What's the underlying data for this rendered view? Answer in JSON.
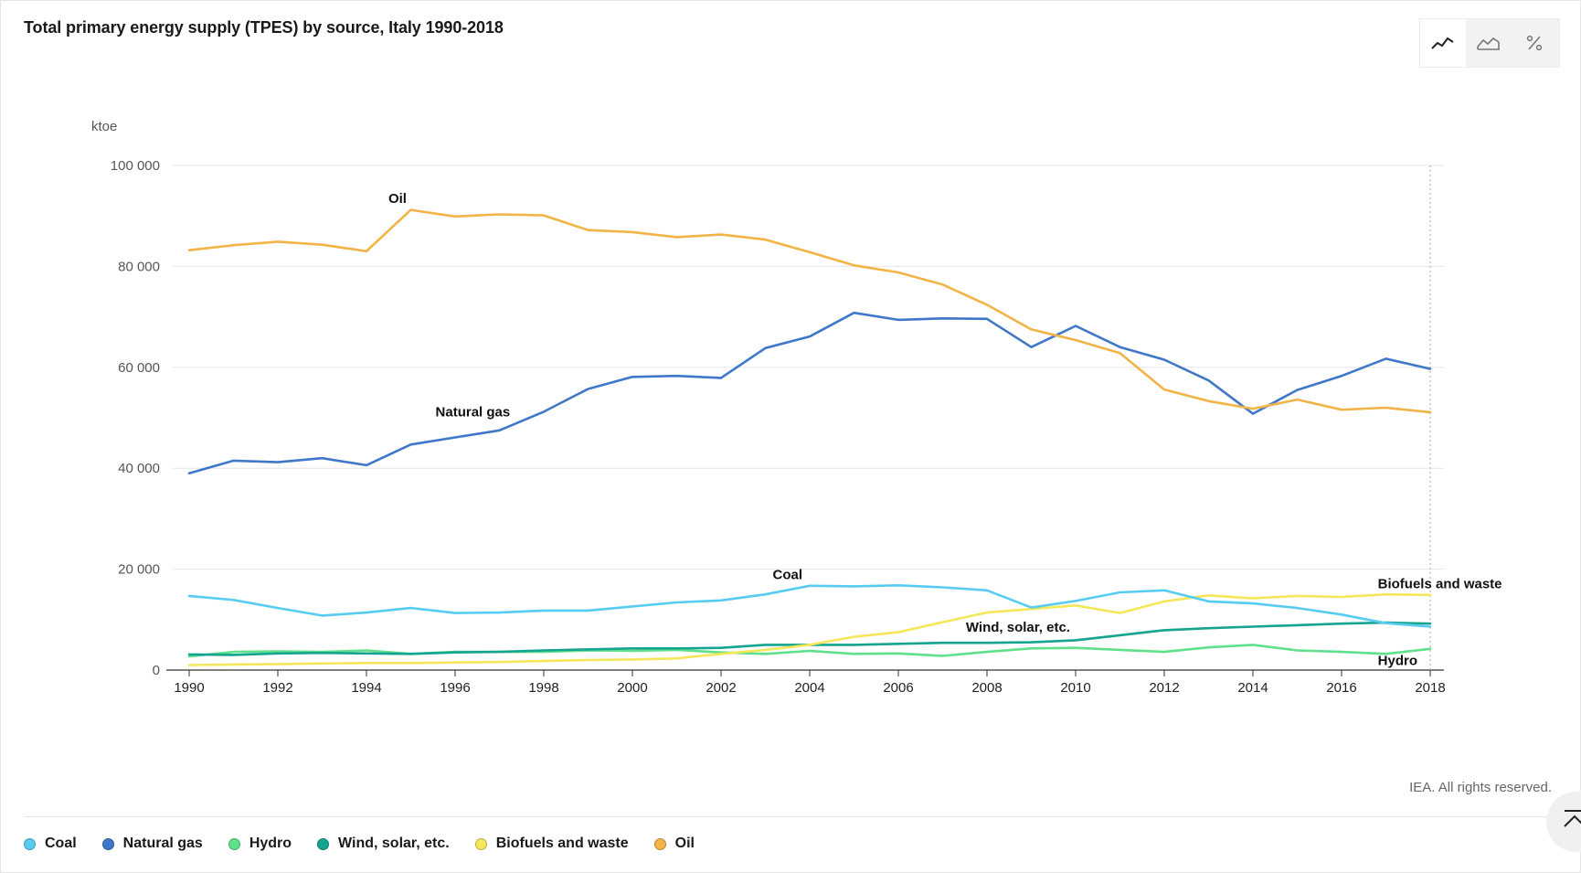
{
  "title": "Total primary energy supply (TPES) by source, Italy 1990-2018",
  "view_toggle": [
    {
      "name": "line-view",
      "icon": "line-chart-icon",
      "active": true
    },
    {
      "name": "area-view",
      "icon": "area-chart-icon",
      "active": false
    },
    {
      "name": "percent-view",
      "icon": "percent-icon",
      "active": false
    }
  ],
  "copyright": "IEA. All rights reserved.",
  "chart_data": {
    "type": "line",
    "title": "Total primary energy supply (TPES) by source, Italy 1990-2018",
    "ylabel": "ktoe",
    "ylim": [
      0,
      100000
    ],
    "yticks": [
      0,
      20000,
      40000,
      60000,
      80000,
      100000
    ],
    "ytick_labels": [
      "0",
      "20 000",
      "40 000",
      "60 000",
      "80 000",
      "100 000"
    ],
    "xlim": [
      1990,
      2018
    ],
    "xticks": [
      1990,
      1992,
      1994,
      1996,
      1998,
      2000,
      2002,
      2004,
      2006,
      2008,
      2010,
      2012,
      2014,
      2016,
      2018
    ],
    "x": [
      1990,
      1991,
      1992,
      1993,
      1994,
      1995,
      1996,
      1997,
      1998,
      1999,
      2000,
      2001,
      2002,
      2003,
      2004,
      2005,
      2006,
      2007,
      2008,
      2009,
      2010,
      2011,
      2012,
      2013,
      2014,
      2015,
      2016,
      2017,
      2018
    ],
    "grid": true,
    "legend_position": "bottom",
    "series": [
      {
        "name": "Coal",
        "color": "#56cdf0",
        "label": "Coal",
        "label_year": 2003.5,
        "label_value": 18000,
        "values": [
          14700,
          13900,
          12300,
          10800,
          11400,
          12300,
          11300,
          11400,
          11800,
          11800,
          12600,
          13400,
          13800,
          15000,
          16700,
          16600,
          16800,
          16400,
          15800,
          12400,
          13700,
          15400,
          15800,
          13600,
          13200,
          12300,
          11000,
          9300,
          8600
        ]
      },
      {
        "name": "Natural gas",
        "color": "#3f77c9",
        "label": "Natural gas",
        "label_year": 1996.4,
        "label_value": 50300,
        "values": [
          39000,
          41500,
          41200,
          42000,
          40600,
          44700,
          46100,
          47500,
          51200,
          55700,
          58100,
          58300,
          57900,
          63800,
          66100,
          70800,
          69400,
          69700,
          69600,
          64000,
          68200,
          64000,
          61500,
          57400,
          50800,
          55500,
          58300,
          61700,
          59700
        ]
      },
      {
        "name": "Hydro",
        "color": "#5fe08a",
        "label": "Hydro",
        "label_year": 2016.9,
        "label_value": 1000,
        "values": [
          2700,
          3600,
          3700,
          3600,
          3900,
          3200,
          3600,
          3600,
          3600,
          3900,
          3800,
          4000,
          3500,
          3200,
          3800,
          3200,
          3300,
          2800,
          3600,
          4300,
          4400,
          4000,
          3600,
          4500,
          5000,
          3900,
          3600,
          3200,
          4200
        ]
      },
      {
        "name": "Wind, solar, etc.",
        "color": "#14a48f",
        "label": "Wind, solar, etc.",
        "label_year": 2008.7,
        "label_value": 7600,
        "values": [
          3100,
          3000,
          3300,
          3400,
          3300,
          3200,
          3500,
          3600,
          3900,
          4100,
          4300,
          4300,
          4400,
          5000,
          5000,
          5000,
          5200,
          5400,
          5400,
          5500,
          5900,
          6900,
          7900,
          8300,
          8600,
          8900,
          9200,
          9400,
          9200
        ]
      },
      {
        "name": "Biofuels and waste",
        "color": "#f5e75a",
        "label": "Biofuels and waste",
        "label_year": 2016.9,
        "label_value": 16200,
        "values": [
          1000,
          1100,
          1200,
          1300,
          1400,
          1400,
          1500,
          1600,
          1800,
          2000,
          2100,
          2300,
          3200,
          4000,
          5000,
          6600,
          7500,
          9500,
          11400,
          12100,
          12800,
          11300,
          13600,
          14800,
          14200,
          14700,
          14500,
          15000,
          14900
        ]
      },
      {
        "name": "Oil",
        "color": "#f2b347",
        "label": "Oil",
        "label_year": 1994.7,
        "label_value": 92600,
        "values": [
          83200,
          84200,
          84900,
          84300,
          83000,
          91200,
          89900,
          90300,
          90100,
          87200,
          86800,
          85800,
          86300,
          85300,
          82800,
          80200,
          78800,
          76400,
          72400,
          67500,
          65400,
          62800,
          55600,
          53300,
          51800,
          53600,
          51600,
          52000,
          51100
        ]
      }
    ]
  },
  "legend": [
    {
      "label": "Coal",
      "color": "#56cdf0"
    },
    {
      "label": "Natural gas",
      "color": "#3f77c9"
    },
    {
      "label": "Hydro",
      "color": "#5fe08a"
    },
    {
      "label": "Wind, solar, etc.",
      "color": "#14a48f"
    },
    {
      "label": "Biofuels and waste",
      "color": "#f5e75a"
    },
    {
      "label": "Oil",
      "color": "#f2b347"
    }
  ]
}
